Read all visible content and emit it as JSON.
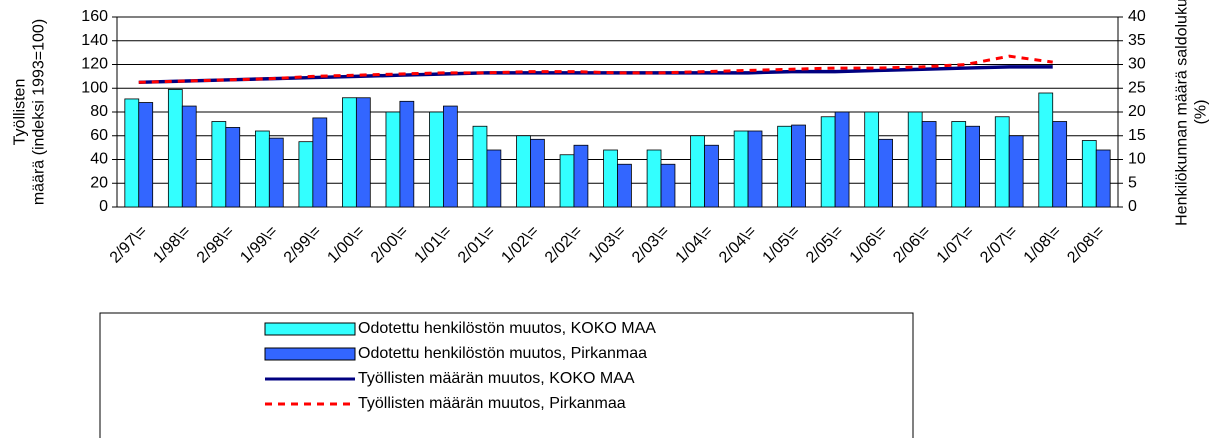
{
  "chart_data": {
    "type": "bar_line",
    "y_label": "Työllisten määrä (indeksi 1993=100)",
    "y2_label": "Henkilökunnan määrä saldoluku (%)",
    "categories": [
      "2/97\\=",
      "1/98\\=",
      "2/98\\=",
      "1/99\\=",
      "2/99\\=",
      "1/00\\=",
      "2/00\\=",
      "1/01\\=",
      "2/01\\=",
      "1/02\\=",
      "2/02\\=",
      "1/03\\=",
      "2/03\\=",
      "1/04\\=",
      "2/04\\=",
      "1/05\\=",
      "2/05\\=",
      "1/06\\=",
      "2/06\\=",
      "1/07\\=",
      "2/07\\=",
      "1/08\\=",
      "2/08\\="
    ],
    "series": [
      {
        "name": "Odotettu henkilöstön muutos, KOKO MAA",
        "kind": "bar",
        "axis": "y2",
        "color": "#33ffff",
        "values": [
          22.75,
          24.75,
          18,
          16,
          13.75,
          23,
          20,
          20,
          17,
          15,
          11,
          12,
          12,
          15,
          16,
          17,
          19,
          20,
          20,
          18,
          19,
          24,
          14
        ]
      },
      {
        "name": "Odotettu henkilöstön muutos, Pirkanmaa",
        "kind": "bar",
        "axis": "y2",
        "color": "#3366ff",
        "values": [
          22,
          21.25,
          16.75,
          14.5,
          18.75,
          23,
          22.25,
          21.25,
          12,
          14.25,
          13,
          9,
          9,
          13,
          16,
          17.25,
          20,
          14.25,
          18,
          17,
          15,
          18,
          12
        ]
      },
      {
        "name": "Työllisten määrän muutos, KOKO MAA",
        "kind": "line",
        "axis": "y",
        "color": "#000080",
        "dash": false,
        "values": [
          105,
          106,
          107,
          108,
          109,
          110,
          111,
          112,
          113,
          113,
          113,
          113,
          113,
          113,
          113,
          114,
          114,
          115,
          116,
          117,
          118,
          118,
          null
        ]
      },
      {
        "name": "Työllisten määrän muutos, Pirkanmaa",
        "kind": "line",
        "axis": "y",
        "color": "#ff0000",
        "dash": true,
        "values": [
          105,
          106,
          107,
          108,
          110,
          111,
          112,
          113,
          113,
          114,
          114,
          113,
          113,
          114,
          115,
          116,
          117,
          117,
          118,
          120,
          127,
          122,
          null
        ]
      }
    ],
    "ylim": [
      0,
      160
    ],
    "yticks": [
      0,
      20,
      40,
      60,
      80,
      100,
      120,
      140,
      160
    ],
    "y2lim": [
      0,
      40
    ],
    "y2ticks": [
      0,
      5,
      10,
      15,
      20,
      25,
      30,
      35,
      40
    ],
    "grid": true
  }
}
